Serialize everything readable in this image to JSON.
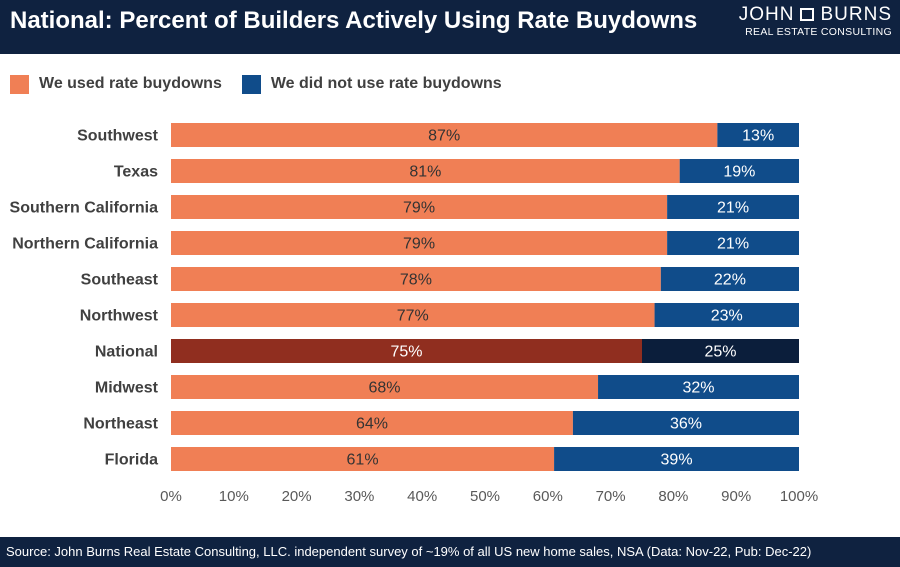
{
  "header": {
    "title": "National: Percent of Builders Actively Using Rate Buydowns",
    "logo_top_left": "JOHN",
    "logo_top_right": "BURNS",
    "logo_sub": "REAL ESTATE CONSULTING"
  },
  "footer": {
    "source": "Source: John Burns Real Estate Consulting, LLC. independent survey of ~19% of all US new home sales, NSA (Data: Nov-22, Pub: Dec-22)"
  },
  "chart_data": {
    "type": "bar",
    "orientation": "horizontal",
    "stacked": true,
    "categories": [
      "Southwest",
      "Texas",
      "Southern California",
      "Northern California",
      "Southeast",
      "Northwest",
      "National",
      "Midwest",
      "Northeast",
      "Florida"
    ],
    "series": [
      {
        "name": "We used rate buydowns",
        "values": [
          87,
          81,
          79,
          79,
          78,
          77,
          75,
          68,
          64,
          61
        ],
        "labels": [
          "87%",
          "81%",
          "79%",
          "79%",
          "78%",
          "77%",
          "75%",
          "68%",
          "64%",
          "61%"
        ],
        "color": "#f07f55",
        "highlight_color": "#902e1f"
      },
      {
        "name": "We did not use rate buydowns",
        "values": [
          13,
          19,
          21,
          21,
          22,
          23,
          25,
          32,
          36,
          39
        ],
        "labels": [
          "13%",
          "19%",
          "21%",
          "21%",
          "22%",
          "23%",
          "25%",
          "32%",
          "36%",
          "39%"
        ],
        "color": "#104c8a",
        "highlight_color": "#0b1e3b"
      }
    ],
    "highlight_category": "National",
    "xlim": [
      0,
      100
    ],
    "xticks": [
      0,
      10,
      20,
      30,
      40,
      50,
      60,
      70,
      80,
      90,
      100
    ],
    "xtick_labels": [
      "0%",
      "10%",
      "20%",
      "30%",
      "40%",
      "50%",
      "60%",
      "70%",
      "80%",
      "90%",
      "100%"
    ],
    "grid": false,
    "legend_position": "top-left"
  }
}
